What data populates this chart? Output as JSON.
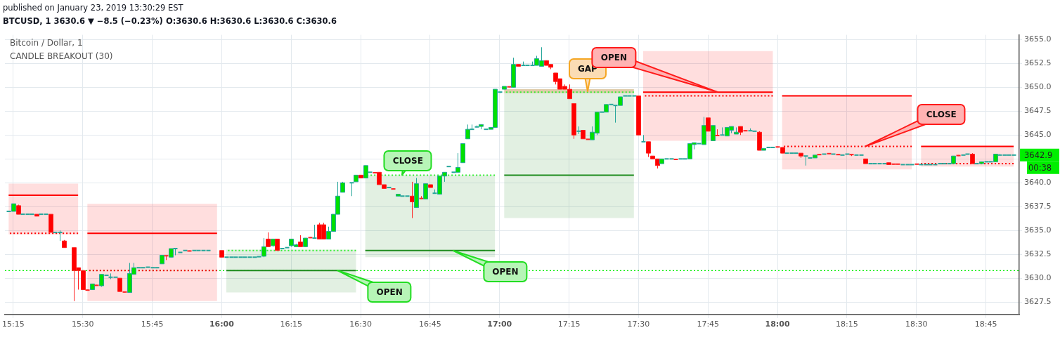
{
  "chart_data": {
    "type": "candlestick",
    "title": "Bitcoin / Dollar, 1",
    "subtitle": "CANDLE BREAKOUT (30)",
    "xlim": [
      15.22,
      18.87
    ],
    "xticks": [
      {
        "value": 15.25,
        "label": "15:15"
      },
      {
        "value": 15.5,
        "label": "15:30"
      },
      {
        "value": 15.75,
        "label": "15:45"
      },
      {
        "value": 16,
        "label": "16:00"
      },
      {
        "value": 16.25,
        "label": "16:15"
      },
      {
        "value": 16.5,
        "label": "16:30"
      },
      {
        "value": 16.75,
        "label": "16:45"
      },
      {
        "value": 17,
        "label": "17:00"
      },
      {
        "value": 17.25,
        "label": "17:15"
      },
      {
        "value": 17.5,
        "label": "17:30"
      },
      {
        "value": 17.75,
        "label": "17:45"
      },
      {
        "value": 18,
        "label": "18:00"
      },
      {
        "value": 18.25,
        "label": "18:15"
      },
      {
        "value": 18.5,
        "label": "18:30"
      },
      {
        "value": 18.75,
        "label": "18:45"
      }
    ],
    "ylim": [
      3626.2,
      3655.5
    ],
    "yticks": [
      {
        "value": 3627.5,
        "label": "3627.5"
      },
      {
        "value": 3630,
        "label": "3630.0"
      },
      {
        "value": 3632.5,
        "label": "3632.5"
      },
      {
        "value": 3635,
        "label": "3635.0"
      },
      {
        "value": 3637.5,
        "label": "3637.5"
      },
      {
        "value": 3640,
        "label": "3640.0"
      },
      {
        "value": 3642.5,
        "label": null
      },
      {
        "value": 3645,
        "label": "3645.0"
      },
      {
        "value": 3647.5,
        "label": "3647.5"
      },
      {
        "value": 3650,
        "label": "3650.0"
      },
      {
        "value": 3652.5,
        "label": "3652.5"
      },
      {
        "value": 3655,
        "label": "3655.0"
      }
    ],
    "grid": true,
    "x": [
      15.2333,
      15.25,
      15.2667,
      15.2833,
      15.3,
      15.3167,
      15.3333,
      15.35,
      15.3667,
      15.3833,
      15.4,
      15.4167,
      15.4333,
      15.4667,
      15.4833,
      15.5,
      15.5167,
      15.5333,
      15.55,
      15.5667,
      15.5833,
      15.6,
      15.6167,
      15.6333,
      15.65,
      15.6667,
      15.6833,
      15.7,
      15.7167,
      15.7333,
      15.75,
      15.7667,
      15.7833,
      15.8,
      15.8167,
      15.8333,
      15.85,
      15.8667,
      15.8833,
      15.9,
      15.9167,
      15.9333,
      15.95,
      16.0,
      16.0167,
      16.0333,
      16.05,
      16.0667,
      16.0833,
      16.1,
      16.1167,
      16.1333,
      16.15,
      16.1667,
      16.1833,
      16.2,
      16.2167,
      16.2333,
      16.25,
      16.2667,
      16.2833,
      16.3,
      16.3167,
      16.3333,
      16.35,
      16.3667,
      16.3833,
      16.4,
      16.4167,
      16.4333,
      16.4667,
      16.4833,
      16.5,
      16.5167,
      16.5333,
      16.55,
      16.5667,
      16.5833,
      16.6,
      16.6167,
      16.6333,
      16.65,
      16.6667,
      16.6833,
      16.7,
      16.7167,
      16.7333,
      16.75,
      16.7667,
      16.7833,
      16.8,
      16.8167,
      16.8333,
      16.85,
      16.8667,
      16.8833,
      16.9,
      16.9167,
      16.9333,
      16.95,
      16.9667,
      16.9833,
      17.0,
      17.0167,
      17.0333,
      17.05,
      17.0667,
      17.0833,
      17.1,
      17.1167,
      17.1333,
      17.15,
      17.1667,
      17.1833,
      17.2,
      17.2167,
      17.2333,
      17.25,
      17.2667,
      17.2833,
      17.3,
      17.3167,
      17.3333,
      17.35,
      17.3667,
      17.3833,
      17.4,
      17.4167,
      17.4333,
      17.45,
      17.4667,
      17.4833,
      17.5,
      17.5167,
      17.5333,
      17.55,
      17.5667,
      17.5833,
      17.6,
      17.6167,
      17.6333,
      17.65,
      17.6667,
      17.6833,
      17.7,
      17.7167,
      17.7333,
      17.75,
      17.7667,
      17.7833,
      17.8,
      17.8167,
      17.8333,
      17.85,
      17.8667,
      17.8833,
      17.9,
      17.9167,
      17.9333,
      17.95,
      17.9667,
      17.9833,
      18.0,
      18.0167,
      18.0333,
      18.05,
      18.0667,
      18.0833,
      18.1,
      18.1167,
      18.1333,
      18.15,
      18.1667,
      18.1833,
      18.2,
      18.2167,
      18.2333,
      18.25,
      18.2667,
      18.2833,
      18.3,
      18.3167,
      18.3333,
      18.35,
      18.3667,
      18.3833,
      18.4,
      18.4167,
      18.4333,
      18.45,
      18.4667,
      18.4833,
      18.5,
      18.5167,
      18.5333,
      18.55,
      18.5667,
      18.5833,
      18.6,
      18.6167,
      18.6333,
      18.65,
      18.6667,
      18.6833,
      18.7,
      18.7167,
      18.7333,
      18.75,
      18.7667,
      18.7833,
      18.8,
      18.8167,
      18.8333,
      18.85
    ],
    "ohlc": [
      [
        3637.0,
        3637.0,
        3637.0,
        3637.0
      ],
      [
        3637.0,
        3637.8,
        3637.0,
        3637.8
      ],
      [
        3637.6,
        3637.7,
        3636.7,
        3636.7
      ],
      [
        3636.7,
        3636.7,
        3636.7,
        3636.7
      ],
      [
        3636.7,
        3636.7,
        3636.7,
        3636.7
      ],
      [
        3636.7,
        3636.7,
        3636.7,
        3636.7
      ],
      [
        3636.7,
        3636.7,
        3636.5,
        3636.5
      ],
      [
        3636.7,
        3636.7,
        3636.7,
        3636.7
      ],
      [
        3636.7,
        3636.7,
        3636.7,
        3636.7
      ],
      [
        3636.7,
        3636.7,
        3634.8,
        3634.8
      ],
      [
        3634.8,
        3634.8,
        3634.8,
        3634.8
      ],
      [
        3634.8,
        3635.0,
        3633.9,
        3634.8
      ],
      [
        3633.9,
        3634.0,
        3633.2,
        3633.2
      ],
      [
        3633.2,
        3633.2,
        3627.6,
        3630.8
      ],
      [
        3631.1,
        3631.1,
        3628.8,
        3630.8
      ],
      [
        3630.8,
        3630.8,
        3628.8,
        3628.8
      ],
      [
        3628.8,
        3628.8,
        3628.7,
        3628.7
      ],
      [
        3628.8,
        3629.4,
        3628.8,
        3629.4
      ],
      [
        3629.3,
        3629.3,
        3629.2,
        3629.2
      ],
      [
        3629.2,
        3630.4,
        3629.1,
        3630.4
      ],
      [
        3630.3,
        3630.3,
        3630.3,
        3630.3
      ],
      [
        3630.1,
        3630.5,
        3629.9,
        3630.1
      ],
      [
        3630.1,
        3630.1,
        3630.1,
        3630.1
      ],
      [
        3630.0,
        3630.0,
        3628.6,
        3628.6
      ],
      [
        3628.6,
        3628.6,
        3628.5,
        3628.5
      ],
      [
        3628.5,
        3631.6,
        3628.5,
        3630.5
      ],
      [
        3630.4,
        3631.6,
        3630.4,
        3631.1
      ],
      [
        3631.1,
        3631.1,
        3631.1,
        3631.1
      ],
      [
        3631.1,
        3631.1,
        3631.1,
        3631.1
      ],
      [
        3631.1,
        3631.2,
        3631.1,
        3631.2
      ],
      [
        3631.1,
        3631.1,
        3631.1,
        3631.1
      ],
      [
        3631.1,
        3631.1,
        3631.1,
        3631.1
      ],
      [
        3631.5,
        3632.4,
        3631.5,
        3632.4
      ],
      [
        3632.4,
        3632.4,
        3631.9,
        3632.3
      ],
      [
        3632.2,
        3633.1,
        3632.2,
        3633.1
      ],
      [
        3633.1,
        3633.1,
        3632.4,
        3633.1
      ],
      [
        3632.7,
        3632.7,
        3632.7,
        3632.7
      ],
      [
        3632.9,
        3632.9,
        3632.9,
        3632.9
      ],
      [
        3632.9,
        3632.9,
        3632.8,
        3632.8
      ],
      [
        3632.9,
        3632.9,
        3632.9,
        3632.9
      ],
      [
        3632.9,
        3632.9,
        3632.9,
        3632.9
      ],
      [
        3632.9,
        3632.9,
        3632.9,
        3632.9
      ],
      [
        3632.9,
        3632.9,
        3632.9,
        3632.9
      ],
      [
        3632.9,
        3632.9,
        3632.2,
        3632.2
      ],
      [
        3632.2,
        3632.2,
        3632.2,
        3632.2
      ],
      [
        3632.2,
        3632.2,
        3632.2,
        3632.2
      ],
      [
        3632.2,
        3632.2,
        3632.2,
        3632.2
      ],
      [
        3632.2,
        3632.2,
        3632.2,
        3632.2
      ],
      [
        3632.2,
        3632.2,
        3632.2,
        3632.2
      ],
      [
        3632.2,
        3632.2,
        3632.2,
        3632.2
      ],
      [
        3632.2,
        3632.2,
        3632.2,
        3632.2
      ],
      [
        3632.2,
        3632.3,
        3632.2,
        3632.3
      ],
      [
        3632.3,
        3634.2,
        3632.2,
        3633.3
      ],
      [
        3634.1,
        3634.8,
        3633.3,
        3633.3
      ],
      [
        3633.4,
        3634.1,
        3633.3,
        3634.1
      ],
      [
        3634.1,
        3634.1,
        3632.9,
        3632.9
      ],
      [
        3633.1,
        3633.1,
        3633.1,
        3633.1
      ],
      [
        3633.2,
        3633.2,
        3633.2,
        3633.2
      ],
      [
        3633.4,
        3634.1,
        3633.3,
        3634.1
      ],
      [
        3633.3,
        3633.6,
        3633.3,
        3633.5
      ],
      [
        3633.8,
        3634.5,
        3633.3,
        3633.3
      ],
      [
        3633.3,
        3634.2,
        3633.3,
        3634.2
      ],
      [
        3634.3,
        3634.3,
        3634.2,
        3634.2
      ],
      [
        3634.2,
        3635.6,
        3634.2,
        3634.2
      ],
      [
        3635.6,
        3635.8,
        3634.1,
        3634.1
      ],
      [
        3635.6,
        3635.8,
        3634.1,
        3634.1
      ],
      [
        3634.1,
        3635.4,
        3634.1,
        3634.9
      ],
      [
        3634.9,
        3636.7,
        3634.9,
        3636.7
      ],
      [
        3636.7,
        3640.1,
        3636.7,
        3638.6
      ],
      [
        3639.0,
        3640.1,
        3639.0,
        3640.0
      ],
      [
        3640.0,
        3640.0,
        3638.6,
        3640.0
      ],
      [
        3640.1,
        3640.8,
        3640.1,
        3640.8
      ],
      [
        3640.8,
        3640.8,
        3640.5,
        3640.5
      ],
      [
        3640.5,
        3641.8,
        3640.5,
        3641.8
      ],
      [
        3641.1,
        3641.1,
        3641.1,
        3641.1
      ],
      [
        3641.1,
        3641.1,
        3641.0,
        3641.0
      ],
      [
        3641.1,
        3641.1,
        3639.8,
        3639.8
      ],
      [
        3639.8,
        3639.8,
        3639.4,
        3639.4
      ],
      [
        3639.5,
        3639.5,
        3639.5,
        3639.5
      ],
      [
        3639.4,
        3639.4,
        3639.3,
        3639.3
      ],
      [
        3638.6,
        3638.8,
        3638.6,
        3638.8
      ],
      [
        3638.6,
        3638.6,
        3638.6,
        3638.6
      ],
      [
        3638.6,
        3638.6,
        3638.6,
        3638.6
      ],
      [
        3638.6,
        3640.1,
        3636.3,
        3638.0
      ],
      [
        3637.4,
        3640.5,
        3637.4,
        3639.9
      ],
      [
        3638.4,
        3638.6,
        3638.3,
        3638.3
      ],
      [
        3638.3,
        3639.9,
        3638.3,
        3639.9
      ],
      [
        3639.8,
        3639.8,
        3639.5,
        3639.5
      ],
      [
        3638.9,
        3639.3,
        3638.9,
        3638.9
      ],
      [
        3638.8,
        3640.7,
        3638.8,
        3640.7
      ],
      [
        3640.7,
        3641.1,
        3640.1,
        3641.1
      ],
      [
        3641.7,
        3641.7,
        3641.7,
        3641.7
      ],
      [
        3641.1,
        3641.1,
        3641.1,
        3641.1
      ],
      [
        3641.1,
        3643.1,
        3641.1,
        3641.6
      ],
      [
        3642.1,
        3644.1,
        3642.1,
        3644.1
      ],
      [
        3644.6,
        3646.1,
        3644.6,
        3645.6
      ],
      [
        3645.6,
        3646.1,
        3645.6,
        3645.6
      ],
      [
        3645.8,
        3646.0,
        3645.8,
        3645.9
      ],
      [
        3645.9,
        3646.1,
        3645.6,
        3646.1
      ],
      [
        3645.6,
        3645.6,
        3645.6,
        3645.6
      ],
      [
        3645.6,
        3645.8,
        3645.6,
        3645.8
      ],
      [
        3645.8,
        3649.8,
        3645.8,
        3649.8
      ],
      [
        3649.5,
        3649.5,
        3649.4,
        3649.5
      ],
      [
        3649.8,
        3650.1,
        3649.8,
        3650.1
      ],
      [
        3650.1,
        3650.1,
        3650.0,
        3650.0
      ],
      [
        3650.0,
        3653.1,
        3650.0,
        3652.4
      ],
      [
        3652.4,
        3652.4,
        3652.2,
        3652.2
      ],
      [
        3652.3,
        3652.7,
        3652.3,
        3652.3
      ],
      [
        3652.3,
        3652.3,
        3652.3,
        3652.3
      ],
      [
        3652.3,
        3652.7,
        3652.3,
        3652.3
      ],
      [
        3652.3,
        3653.3,
        3652.3,
        3653.0
      ],
      [
        3652.2,
        3654.2,
        3652.2,
        3652.8
      ],
      [
        3652.8,
        3652.8,
        3652.3,
        3652.3
      ],
      [
        3652.4,
        3652.4,
        3651.9,
        3652.1
      ],
      [
        3651.5,
        3651.5,
        3650.3,
        3650.6
      ],
      [
        3650.9,
        3650.9,
        3649.8,
        3649.8
      ],
      [
        3650.1,
        3650.3,
        3649.8,
        3649.8
      ],
      [
        3649.8,
        3650.3,
        3648.8,
        3648.8
      ],
      [
        3648.3,
        3648.3,
        3644.6,
        3645.0
      ],
      [
        3645.4,
        3645.9,
        3645.1,
        3645.4
      ],
      [
        3645.5,
        3645.5,
        3644.6,
        3644.6
      ],
      [
        3644.6,
        3644.6,
        3644.5,
        3644.5
      ],
      [
        3644.5,
        3645.9,
        3644.5,
        3645.3
      ],
      [
        3645.2,
        3647.4,
        3645.0,
        3647.4
      ],
      [
        3647.4,
        3647.4,
        3647.4,
        3647.4
      ],
      [
        3647.4,
        3648.2,
        3647.4,
        3648.2
      ],
      [
        3648.2,
        3648.2,
        3648.2,
        3648.2
      ],
      [
        3648.1,
        3648.1,
        3646.3,
        3648.1
      ],
      [
        3648.1,
        3649.0,
        3648.1,
        3649.0
      ],
      [
        3649.1,
        3649.1,
        3649.1,
        3649.1
      ],
      [
        3649.1,
        3649.1,
        3649.1,
        3649.1
      ],
      [
        3649.1,
        3649.1,
        3649.1,
        3649.1
      ],
      [
        3649.1,
        3649.1,
        3645.0,
        3645.0
      ],
      [
        3644.3,
        3645.0,
        3644.3,
        3644.3
      ],
      [
        3644.3,
        3644.3,
        3642.7,
        3643.1
      ],
      [
        3642.8,
        3642.8,
        3642.5,
        3642.5
      ],
      [
        3642.5,
        3642.5,
        3641.5,
        3641.8
      ],
      [
        3642.0,
        3642.5,
        3642.0,
        3642.5
      ],
      [
        3642.5,
        3642.5,
        3642.5,
        3642.5
      ],
      [
        3642.5,
        3642.5,
        3642.5,
        3642.5
      ],
      [
        3642.5,
        3642.5,
        3642.4,
        3642.4
      ],
      [
        3642.5,
        3642.5,
        3642.5,
        3642.5
      ],
      [
        3642.5,
        3642.5,
        3642.5,
        3642.5
      ],
      [
        3642.5,
        3644.1,
        3642.5,
        3644.1
      ],
      [
        3644.0,
        3644.2,
        3643.5,
        3644.2
      ],
      [
        3644.1,
        3644.1,
        3644.1,
        3644.1
      ],
      [
        3644.0,
        3646.9,
        3644.0,
        3646.0
      ],
      [
        3646.8,
        3646.8,
        3645.4,
        3645.4
      ],
      [
        3644.4,
        3646.0,
        3644.4,
        3646.0
      ],
      [
        3645.0,
        3645.6,
        3644.9,
        3644.9
      ],
      [
        3645.0,
        3645.8,
        3645.0,
        3645.0
      ],
      [
        3644.9,
        3645.8,
        3644.9,
        3645.8
      ],
      [
        3645.5,
        3645.9,
        3645.2,
        3645.9
      ],
      [
        3645.1,
        3645.8,
        3645.1,
        3645.3
      ],
      [
        3645.9,
        3645.9,
        3645.0,
        3645.3
      ],
      [
        3645.5,
        3645.5,
        3645.4,
        3645.4
      ],
      [
        3645.4,
        3645.7,
        3645.4,
        3645.5
      ],
      [
        3645.4,
        3645.4,
        3645.4,
        3645.4
      ],
      [
        3645.3,
        3645.4,
        3643.4,
        3643.4
      ],
      [
        3643.4,
        3643.6,
        3643.4,
        3643.6
      ],
      [
        3643.7,
        3643.7,
        3643.7,
        3643.7
      ],
      [
        3643.7,
        3643.7,
        3643.7,
        3643.7
      ],
      [
        3643.8,
        3643.8,
        3643.7,
        3643.7
      ],
      [
        3643.7,
        3643.7,
        3643.1,
        3643.1
      ],
      [
        3643.1,
        3643.1,
        3643.1,
        3643.1
      ],
      [
        3643.1,
        3643.1,
        3643.1,
        3643.1
      ],
      [
        3643.1,
        3643.1,
        3643.1,
        3643.1
      ],
      [
        3643.1,
        3643.1,
        3642.6,
        3642.8
      ],
      [
        3642.8,
        3642.8,
        3641.8,
        3642.8
      ],
      [
        3642.6,
        3642.6,
        3642.6,
        3642.6
      ],
      [
        3642.6,
        3642.9,
        3642.6,
        3642.9
      ],
      [
        3643.0,
        3643.0,
        3642.9,
        3642.9
      ],
      [
        3643.0,
        3643.0,
        3643.0,
        3643.0
      ],
      [
        3643.1,
        3643.1,
        3643.0,
        3643.0
      ],
      [
        3643.0,
        3643.0,
        3643.0,
        3643.0
      ],
      [
        3643.0,
        3643.0,
        3642.9,
        3642.9
      ],
      [
        3642.9,
        3642.9,
        3642.9,
        3642.9
      ],
      [
        3643.0,
        3643.0,
        3643.0,
        3643.0
      ],
      [
        3643.0,
        3643.0,
        3642.8,
        3642.9
      ],
      [
        3642.9,
        3642.9,
        3642.9,
        3642.9
      ],
      [
        3642.9,
        3642.9,
        3642.9,
        3642.9
      ],
      [
        3642.5,
        3642.5,
        3642.0,
        3642.0
      ],
      [
        3642.0,
        3642.0,
        3642.0,
        3642.0
      ],
      [
        3642.0,
        3642.0,
        3642.0,
        3642.0
      ],
      [
        3642.0,
        3642.0,
        3642.0,
        3642.0
      ],
      [
        3642.0,
        3642.0,
        3642.0,
        3642.0
      ],
      [
        3642.1,
        3642.1,
        3641.9,
        3641.9
      ],
      [
        3642.0,
        3642.0,
        3641.9,
        3641.9
      ],
      [
        3642.0,
        3642.0,
        3641.9,
        3641.9
      ],
      [
        3641.9,
        3641.9,
        3641.9,
        3641.9
      ],
      [
        3641.9,
        3641.9,
        3641.9,
        3641.9
      ],
      [
        3641.9,
        3641.9,
        3641.9,
        3641.9
      ],
      [
        3642.0,
        3642.0,
        3641.9,
        3641.9
      ],
      [
        3641.9,
        3641.9,
        3641.9,
        3641.9
      ],
      [
        3641.9,
        3641.9,
        3641.9,
        3641.9
      ],
      [
        3641.9,
        3641.9,
        3641.9,
        3641.9
      ],
      [
        3641.9,
        3641.9,
        3641.9,
        3641.9
      ],
      [
        3642.0,
        3642.0,
        3642.0,
        3642.0
      ],
      [
        3642.0,
        3642.0,
        3642.0,
        3642.0
      ],
      [
        3642.0,
        3642.0,
        3642.0,
        3642.0
      ],
      [
        3642.0,
        3642.8,
        3642.0,
        3642.8
      ],
      [
        3642.9,
        3642.9,
        3642.8,
        3642.8
      ],
      [
        3642.9,
        3642.9,
        3642.9,
        3642.9
      ],
      [
        3643.0,
        3643.0,
        3643.0,
        3643.0
      ],
      [
        3643.0,
        3643.1,
        3642.0,
        3642.0
      ],
      [
        3642.0,
        3642.0,
        3642.0,
        3642.0
      ],
      [
        3642.0,
        3642.2,
        3642.0,
        3642.2
      ],
      [
        3642.2,
        3642.2,
        3642.2,
        3642.2
      ],
      [
        3642.2,
        3642.2,
        3642.2,
        3642.2
      ],
      [
        3642.2,
        3643.0,
        3642.2,
        3643.0
      ],
      [
        3642.9,
        3643.0,
        3642.9,
        3642.9
      ],
      [
        3642.9,
        3642.9,
        3642.9,
        3642.9
      ],
      [
        3642.9,
        3642.9,
        3642.9,
        3642.9
      ],
      [
        3642.9,
        3642.9,
        3642.9,
        3642.9
      ]
    ],
    "series": [
      {
        "type": "line",
        "color": "#ff0000",
        "x": [
          15.2333,
          15.4833
        ],
        "values": [
          3638.7,
          3638.7
        ],
        "lower": [
          3634.6,
          3634.6
        ],
        "upper": [
          3639.9,
          3639.9
        ]
      },
      {
        "type": "line",
        "color": "#ff0000",
        "line_style": "dotted",
        "x": [
          15.2333,
          15.4833
        ],
        "values": [
          3634.7,
          3634.7
        ]
      },
      {
        "type": "line",
        "color": "#ff0000",
        "x": [
          15.5167,
          15.9833
        ],
        "values": [
          3634.7,
          3634.7
        ],
        "lower": [
          3627.6,
          3627.6
        ],
        "upper": [
          3637.8,
          3637.8
        ]
      },
      {
        "type": "line",
        "color": "#ff0000",
        "line_style": "dotted",
        "x": [
          15.5167,
          15.9833
        ],
        "values": [
          3630.8,
          3630.8
        ]
      },
      {
        "type": "line",
        "color": "#1e8c1e",
        "x": [
          16.0167,
          16.4833
        ],
        "values": [
          3630.8,
          3630.8
        ],
        "lower": [
          3628.5,
          3628.5
        ],
        "upper": [
          3633.0,
          3633.0
        ]
      },
      {
        "type": "line",
        "color": "#33ee33",
        "line_style": "dotted",
        "x": [
          16.0167,
          16.4833
        ],
        "values": [
          3632.9,
          3632.9
        ]
      },
      {
        "type": "line",
        "color": "#1e8c1e",
        "x": [
          16.5167,
          16.9833
        ],
        "values": [
          3632.9,
          3632.9
        ],
        "lower": [
          3632.2,
          3632.2
        ],
        "upper": [
          3640.8,
          3640.8
        ]
      },
      {
        "type": "line",
        "color": "#33ee33",
        "line_style": "dotted",
        "x": [
          16.5167,
          16.9833
        ],
        "values": [
          3640.8,
          3640.8
        ]
      },
      {
        "type": "line",
        "color": "#1e8c1e",
        "x": [
          17.0167,
          17.4833
        ],
        "values": [
          3640.8,
          3640.8
        ],
        "lower": [
          3636.3,
          3636.3
        ],
        "upper": [
          3649.8,
          3649.8
        ]
      },
      {
        "type": "line",
        "color": "#33ee33",
        "line_style": "dotted",
        "x": [
          17.0167,
          17.4833
        ],
        "values": [
          3649.5,
          3649.5
        ]
      },
      {
        "type": "line",
        "color": "#d9a066",
        "x": [
          17.0167,
          17.4833
        ],
        "values": [
          null,
          null
        ],
        "lower": [
          3649.4,
          3649.4
        ],
        "upper": [
          3649.8,
          3649.8
        ]
      },
      {
        "type": "line",
        "color": "#ff0000",
        "x": [
          17.5167,
          17.9833
        ],
        "values": [
          3649.5,
          3649.5
        ],
        "lower": [
          3644.4,
          3644.4
        ],
        "upper": [
          3653.8,
          3653.8
        ]
      },
      {
        "type": "line",
        "color": "#ff0000",
        "line_style": "dotted",
        "x": [
          17.5167,
          17.9833
        ],
        "values": [
          3649.1,
          3649.1
        ]
      },
      {
        "type": "line",
        "color": "#ff0000",
        "x": [
          18.0167,
          18.4833
        ],
        "values": [
          3649.1,
          3649.1
        ],
        "lower": [
          3641.4,
          3641.4
        ],
        "upper": [
          3649.1,
          3649.1
        ]
      },
      {
        "type": "line",
        "color": "#ff0000",
        "line_style": "dotted",
        "x": [
          18.0167,
          18.4833
        ],
        "values": [
          3643.8,
          3643.8
        ]
      },
      {
        "type": "line",
        "color": "#ff0000",
        "x": [
          18.5167,
          18.85
        ],
        "values": [
          3643.8,
          3643.8
        ],
        "lower": [
          3641.7,
          3641.7
        ],
        "upper": [
          3643.8,
          3643.8
        ]
      },
      {
        "type": "line",
        "color": "#ff0000",
        "line_style": "dotted",
        "x": [
          18.5167,
          18.85
        ],
        "values": [
          3642.0,
          3642.0
        ]
      }
    ],
    "ref_lines": [
      {
        "axis": "y",
        "value": 3630.8,
        "color": "#00ee00",
        "line_style": "dotted"
      }
    ],
    "annotations": [
      "published on January 23, 2019 13:30:29 EST",
      "BTCUSD, 1  3630.6 ▼ −8.5 (−0.23%) O:3630.6 H:3630.6 L:3630.6 C:3630.6",
      {
        "text": "CLOSE",
        "x": 16.65,
        "y": 3640.8
      },
      {
        "text": "OPEN",
        "x": 16.4167,
        "y": 3630.8
      },
      {
        "text": "OPEN",
        "x": 16.8333,
        "y": 3632.9
      },
      {
        "text": "GAP",
        "x": 17.3167,
        "y": 3649.6
      },
      {
        "text": "OPEN",
        "x": 17.7833,
        "y": 3649.5
      },
      {
        "text": "CLOSE",
        "x": 18.3167,
        "y": 3643.8
      },
      {
        "text": "3642.9",
        "x": 18.85,
        "y": 3642.9
      },
      {
        "text": "00:38",
        "x": 18.85,
        "y": 3642.9
      }
    ]
  }
}
